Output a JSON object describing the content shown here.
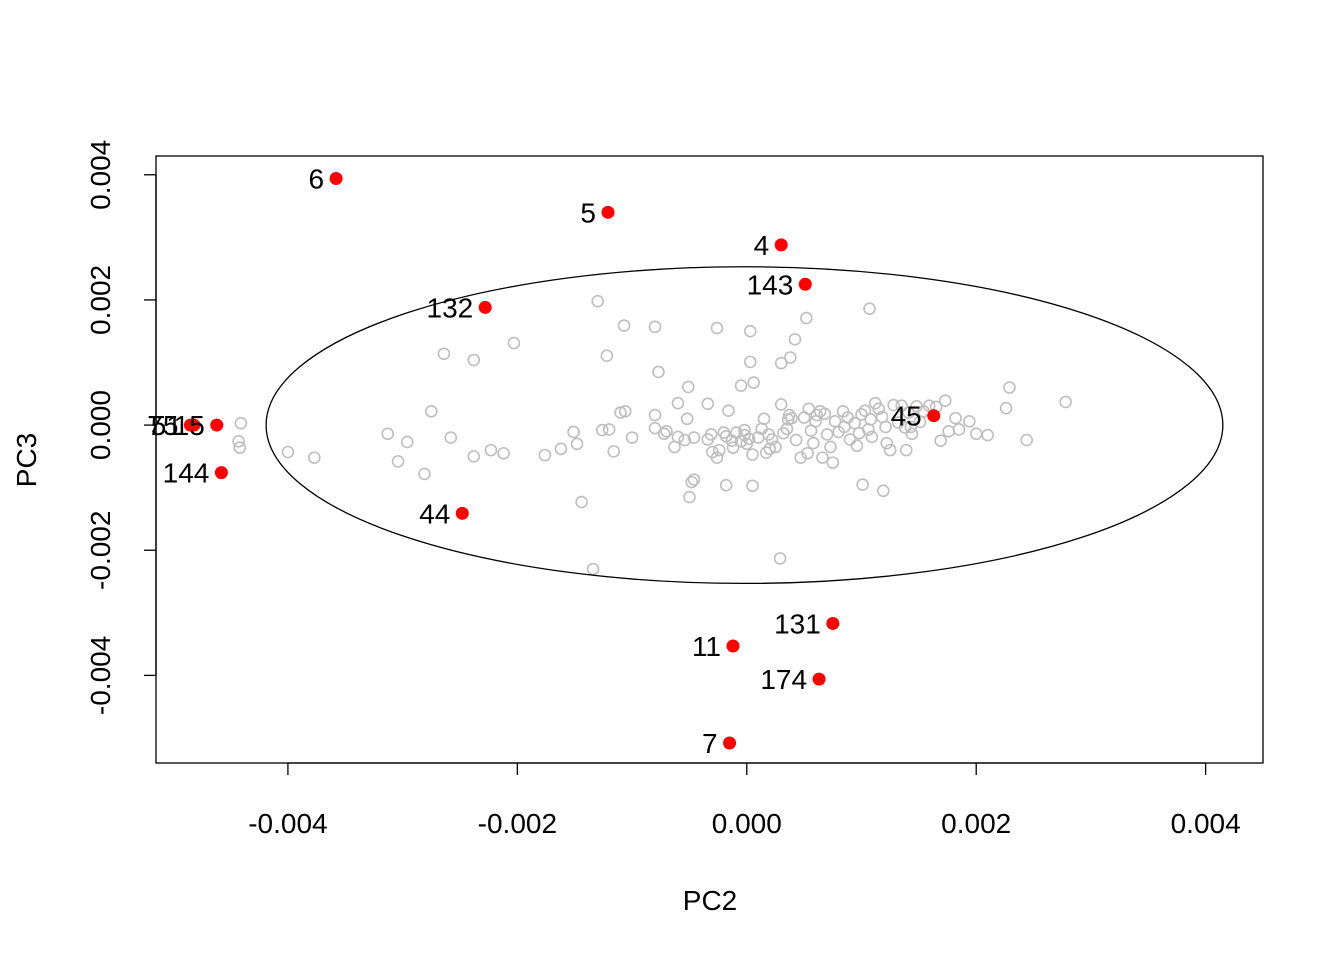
{
  "chart_data": {
    "type": "scatter",
    "title": "",
    "xlabel": "PC2",
    "ylabel": "PC3",
    "xlim": [
      -0.00515,
      0.0045
    ],
    "ylim": [
      -0.0054,
      0.0043
    ],
    "x_ticks": [
      -0.004,
      -0.002,
      0.0,
      0.002,
      0.004
    ],
    "x_tick_labels": [
      "-0.004",
      "-0.002",
      "0.000",
      "0.002",
      "0.004"
    ],
    "y_ticks": [
      -0.004,
      -0.002,
      0.0,
      0.002,
      0.004
    ],
    "y_tick_labels": [
      "-0.004",
      "-0.002",
      "0.000",
      "0.002",
      "0.004"
    ],
    "ellipse": {
      "center": [
        -2e-05,
        0.0
      ],
      "semi_axis_x": 0.00417,
      "semi_axis_y": 0.00253,
      "color": "#000000"
    },
    "colors": {
      "normal": "#bebebe",
      "outlier": "#ff0000"
    },
    "outliers": [
      {
        "label": "6",
        "x": -0.00358,
        "y": 0.00394
      },
      {
        "label": "5",
        "x": -0.00121,
        "y": 0.0034
      },
      {
        "label": "4",
        "x": 0.0003,
        "y": 0.00288
      },
      {
        "label": "143",
        "x": 0.00051,
        "y": 0.00225
      },
      {
        "label": "132",
        "x": -0.00228,
        "y": 0.00188
      },
      {
        "label": "75",
        "x": -0.00485,
        "y": 0.0
      },
      {
        "label": "51",
        "x": -0.00482,
        "y": 0.0
      },
      {
        "label": "15",
        "x": -0.00462,
        "y": 0.0
      },
      {
        "label": "144",
        "x": -0.00458,
        "y": -0.00076
      },
      {
        "label": "45",
        "x": 0.00163,
        "y": 0.00015
      },
      {
        "label": "44",
        "x": -0.00248,
        "y": -0.00141
      },
      {
        "label": "131",
        "x": 0.00075,
        "y": -0.00317
      },
      {
        "label": "11",
        "x": -0.00012,
        "y": -0.00353
      },
      {
        "label": "174",
        "x": 0.00063,
        "y": -0.00406
      },
      {
        "label": "7",
        "x": -0.00015,
        "y": -0.00508
      }
    ],
    "points": [
      [
        -0.0013,
        0.00198
      ],
      [
        -0.00107,
        0.00159
      ],
      [
        -0.00122,
        0.00111
      ],
      [
        -0.0008,
        0.00157
      ],
      [
        -0.00026,
        0.00155
      ],
      [
        3e-05,
        0.0015
      ],
      [
        0.00052,
        0.00171
      ],
      [
        0.00107,
        0.00186
      ],
      [
        0.00042,
        0.00137
      ],
      [
        0.00038,
        0.00108
      ],
      [
        0.0003,
        0.00099
      ],
      [
        3e-05,
        0.00101
      ],
      [
        6e-05,
        0.00068
      ],
      [
        -0.00077,
        0.00085
      ],
      [
        -0.00051,
        0.00061
      ],
      [
        -0.00264,
        0.00114
      ],
      [
        -0.00238,
        0.00104
      ],
      [
        -0.00203,
        0.00131
      ],
      [
        -0.00275,
        0.00022
      ],
      [
        -0.00258,
        -0.0002
      ],
      [
        -0.00313,
        -0.00014
      ],
      [
        -0.00296,
        -0.00027
      ],
      [
        -0.00304,
        -0.00058
      ],
      [
        -0.00281,
        -0.00078
      ],
      [
        -0.004,
        -0.00043
      ],
      [
        -0.00377,
        -0.00052
      ],
      [
        -0.00441,
        3e-05
      ],
      [
        -0.00443,
        -0.00026
      ],
      [
        -0.00442,
        -0.00036
      ],
      [
        -0.00238,
        -0.0005
      ],
      [
        -0.00223,
        -0.0004
      ],
      [
        -0.00212,
        -0.00045
      ],
      [
        -0.00176,
        -0.00048
      ],
      [
        -0.00162,
        -0.00038
      ],
      [
        -0.00148,
        -0.0003
      ],
      [
        -0.00151,
        -0.00011
      ],
      [
        -0.00126,
        -8e-05
      ],
      [
        -0.0012,
        -7e-05
      ],
      [
        -0.0011,
        0.0002
      ],
      [
        -0.00106,
        0.00022
      ],
      [
        -0.001,
        -0.0002
      ],
      [
        -0.00116,
        -0.00042
      ],
      [
        -0.0008,
        0.00016
      ],
      [
        -0.00072,
        -0.00014
      ],
      [
        -0.0006,
        -0.00019
      ],
      [
        -0.00054,
        -0.00024
      ],
      [
        -0.00063,
        -0.00035
      ],
      [
        -0.0006,
        0.00035
      ],
      [
        -0.00052,
        0.0001
      ],
      [
        -0.00046,
        -0.0002
      ],
      [
        -0.00046,
        -0.00087
      ],
      [
        -0.0005,
        -0.00115
      ],
      [
        -0.00048,
        -0.00091
      ],
      [
        -0.00034,
        -0.00023
      ],
      [
        -0.00034,
        0.00034
      ],
      [
        -0.00031,
        -0.00015
      ],
      [
        -0.0003,
        -0.00043
      ],
      [
        -0.00026,
        -0.00052
      ],
      [
        -0.00024,
        -0.0004
      ],
      [
        -0.00018,
        -0.00018
      ],
      [
        -0.0002,
        -0.00012
      ],
      [
        -0.00016,
        0.00023
      ],
      [
        -0.00013,
        -0.00025
      ],
      [
        -0.00012,
        -0.00036
      ],
      [
        -9e-05,
        -0.00012
      ],
      [
        -5e-05,
        -0.00026
      ],
      [
        -2e-05,
        -8e-05
      ],
      [
        0.0,
        -0.0003
      ],
      [
        2e-05,
        -0.00022
      ],
      [
        5e-05,
        -0.00047
      ],
      [
        -0.00018,
        -0.00096
      ],
      [
        5e-05,
        -0.00097
      ],
      [
        0.00013,
        -6e-05
      ],
      [
        0.00015,
        0.0001
      ],
      [
        0.00019,
        -0.00015
      ],
      [
        0.00022,
        -0.00023
      ],
      [
        0.00025,
        -0.00035
      ],
      [
        0.0003,
        0.00033
      ],
      [
        0.00032,
        -0.00013
      ],
      [
        0.00035,
        -6e-05
      ],
      [
        0.00037,
        0.00016
      ],
      [
        0.00039,
        0.00011
      ],
      [
        0.00043,
        -0.00024
      ],
      [
        0.00047,
        -0.00052
      ],
      [
        0.0005,
        0.00012
      ],
      [
        0.00054,
        0.00026
      ],
      [
        0.00056,
        -9e-05
      ],
      [
        0.00058,
        -0.00029
      ],
      [
        0.00061,
        0.00016
      ],
      [
        0.00064,
        0.00022
      ],
      [
        0.00068,
        0.00018
      ],
      [
        0.0007,
        -0.00015
      ],
      [
        0.00073,
        -0.00035
      ],
      [
        0.00077,
        6e-05
      ],
      [
        0.0008,
        -0.00011
      ],
      [
        0.00084,
        0.00022
      ],
      [
        0.00088,
        0.00012
      ],
      [
        0.0009,
        -0.00023
      ],
      [
        0.00094,
        3e-05
      ],
      [
        0.00096,
        -0.00033
      ],
      [
        0.001,
        0.00017
      ],
      [
        0.00103,
        0.00023
      ],
      [
        0.00106,
        -7e-05
      ],
      [
        0.00109,
        -0.00019
      ],
      [
        0.00112,
        0.00035
      ],
      [
        0.00115,
        0.00026
      ],
      [
        0.00118,
        0.00013
      ],
      [
        0.00122,
        -0.00029
      ],
      [
        0.00125,
        -0.0004
      ],
      [
        0.00128,
        0.00032
      ],
      [
        0.00132,
        4e-05
      ],
      [
        0.00135,
        0.00031
      ],
      [
        0.00138,
        -4e-05
      ],
      [
        0.00141,
        0.0002
      ],
      [
        0.00144,
        -0.00014
      ],
      [
        0.00148,
        0.0003
      ],
      [
        0.00151,
        5e-05
      ],
      [
        0.00154,
        0.00022
      ],
      [
        0.00159,
        0.00031
      ],
      [
        0.00165,
        0.00029
      ],
      [
        0.00169,
        -0.00025
      ],
      [
        0.00173,
        0.00039
      ],
      [
        0.00176,
        -0.0001
      ],
      [
        0.00182,
        0.00011
      ],
      [
        0.00185,
        -7e-05
      ],
      [
        0.00194,
        6e-05
      ],
      [
        0.002,
        -0.00014
      ],
      [
        0.0021,
        -0.00016
      ],
      [
        0.00226,
        0.00027
      ],
      [
        0.00229,
        0.0006
      ],
      [
        0.00244,
        -0.00024
      ],
      [
        0.00278,
        0.00037
      ],
      [
        0.00143,
        -3e-05
      ],
      [
        0.00139,
        -0.0004
      ],
      [
        0.00119,
        -0.00105
      ],
      [
        0.00101,
        -0.00095
      ],
      [
        0.00075,
        -0.0006
      ],
      [
        0.00066,
        -0.00052
      ],
      [
        0.00053,
        -0.00045
      ],
      [
        0.00029,
        -0.00213
      ],
      [
        -0.00144,
        -0.00123
      ],
      [
        -0.00134,
        -0.0023
      ],
      [
        -5e-05,
        0.00063
      ],
      [
        0.0002,
        -0.00038
      ],
      [
        0.00036,
        9e-05
      ],
      [
        0.00085,
        -3e-05
      ],
      [
        0.0006,
        6e-05
      ],
      [
        0.0001,
        -0.0002
      ],
      [
        -0.0008,
        -5e-05
      ],
      [
        -0.0007,
        -0.0001
      ],
      [
        -2e-05,
        -0.00016
      ],
      [
        0.00017,
        -0.00044
      ],
      [
        0.00098,
        -0.00013
      ],
      [
        0.00108,
        9e-05
      ],
      [
        0.00121,
        -3e-05
      ]
    ]
  }
}
